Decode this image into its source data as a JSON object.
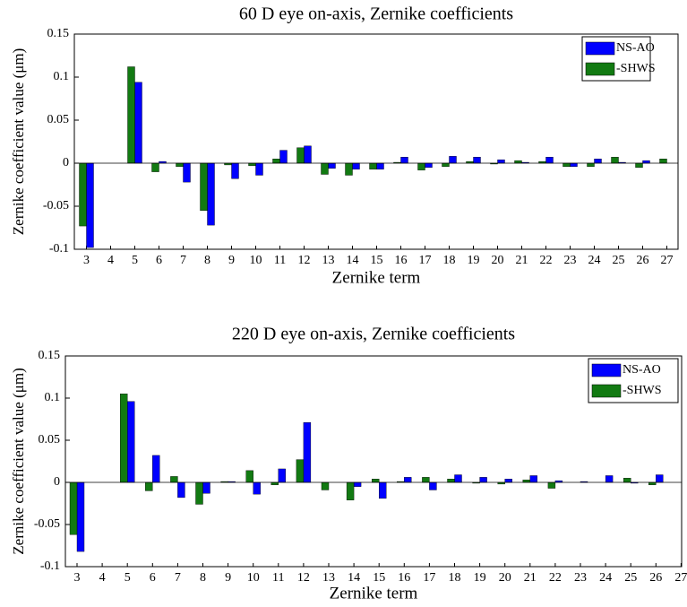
{
  "chart_data": [
    {
      "type": "bar",
      "title": "60 D eye on-axis, Zernike coefficients",
      "x_label": "Zernike term",
      "y_label": "Zernike coefficient value (μm)",
      "categories": [
        "3",
        "4",
        "5",
        "6",
        "7",
        "8",
        "9",
        "10",
        "11",
        "12",
        "13",
        "14",
        "15",
        "16",
        "17",
        "18",
        "19",
        "20",
        "21",
        "22",
        "23",
        "24",
        "25",
        "26",
        "27"
      ],
      "series": [
        {
          "name": "NS-AO",
          "color": "#0000ff",
          "values": [
            -0.098,
            0,
            0.094,
            0.002,
            -0.022,
            -0.072,
            -0.018,
            -0.014,
            0.015,
            0.02,
            -0.006,
            -0.007,
            -0.007,
            0.007,
            -0.005,
            0.008,
            0.007,
            0.004,
            0.001,
            0.007,
            -0.004,
            0.005,
            0.001,
            0.003,
            0
          ]
        },
        {
          "name": "-SHWS",
          "color": "#127a12",
          "values": [
            -0.073,
            0,
            0.112,
            -0.01,
            -0.004,
            -0.055,
            -0.002,
            -0.003,
            0.005,
            0.018,
            -0.013,
            -0.014,
            -0.007,
            0.001,
            -0.008,
            -0.004,
            0.002,
            -0.001,
            0.003,
            0.002,
            -0.004,
            -0.004,
            0.007,
            -0.005,
            0.005
          ]
        }
      ],
      "ylim": [
        -0.1,
        0.15
      ],
      "yticks": [
        -0.1,
        -0.05,
        0,
        0.05,
        0.1,
        0.15
      ],
      "grid": false,
      "legend": "upper right"
    },
    {
      "type": "bar",
      "title": "220 D eye on-axis, Zernike coefficients",
      "x_label": "Zernike term",
      "y_label": "Zernike coefficient value (μm)",
      "categories": [
        "3",
        "4",
        "5",
        "6",
        "7",
        "8",
        "9",
        "10",
        "11",
        "12",
        "13",
        "14",
        "15",
        "16",
        "17",
        "18",
        "19",
        "20",
        "21",
        "22",
        "23",
        "24",
        "25",
        "26",
        "27"
      ],
      "series": [
        {
          "name": "NS-AO",
          "color": "#0000ff",
          "values": [
            -0.082,
            0,
            0.096,
            0.032,
            -0.018,
            -0.013,
            0.001,
            -0.014,
            0.016,
            0.071,
            0,
            -0.005,
            -0.019,
            0.006,
            -0.009,
            0.009,
            0.006,
            0.004,
            0.008,
            0.002,
            0.001,
            0.008,
            -0.001,
            0.009,
            null
          ]
        },
        {
          "name": "-SHWS",
          "color": "#127a12",
          "values": [
            -0.062,
            0,
            0.105,
            -0.01,
            0.007,
            -0.026,
            0.001,
            0.014,
            -0.003,
            0.027,
            -0.009,
            -0.021,
            0.004,
            0.001,
            0.006,
            0.004,
            -0.001,
            -0.002,
            0.003,
            -0.007,
            0,
            0,
            0.005,
            -0.003,
            null
          ]
        }
      ],
      "ylim": [
        -0.1,
        0.15
      ],
      "yticks": [
        -0.1,
        -0.05,
        0,
        0.05,
        0.1,
        0.15
      ],
      "grid": false,
      "legend": "upper right"
    }
  ]
}
